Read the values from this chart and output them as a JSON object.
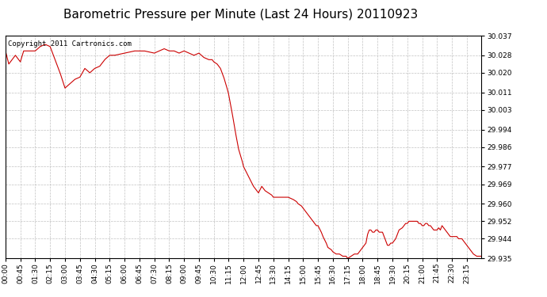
{
  "title": "Barometric Pressure per Minute (Last 24 Hours) 20110923",
  "copyright": "Copyright 2011 Cartronics.com",
  "line_color": "#cc0000",
  "bg_color": "#ffffff",
  "plot_bg_color": "#ffffff",
  "grid_color": "#bbbbbb",
  "yticks": [
    29.935,
    29.944,
    29.952,
    29.96,
    29.969,
    29.977,
    29.986,
    29.994,
    30.003,
    30.011,
    30.02,
    30.028,
    30.037
  ],
  "ylim": [
    29.935,
    30.037
  ],
  "xtick_labels": [
    "00:00",
    "00:45",
    "01:30",
    "02:15",
    "03:00",
    "03:45",
    "04:30",
    "05:15",
    "06:00",
    "06:45",
    "07:30",
    "08:15",
    "09:00",
    "09:45",
    "10:30",
    "11:15",
    "12:00",
    "12:45",
    "13:30",
    "14:15",
    "15:00",
    "15:45",
    "16:30",
    "17:15",
    "18:00",
    "18:45",
    "19:30",
    "20:15",
    "21:00",
    "21:45",
    "22:30",
    "23:15"
  ],
  "title_fontsize": 11,
  "tick_fontsize": 6.5,
  "copyright_fontsize": 6.5,
  "control_points": [
    [
      0,
      30.03
    ],
    [
      10,
      30.024
    ],
    [
      30,
      30.028
    ],
    [
      45,
      30.025
    ],
    [
      55,
      30.03
    ],
    [
      75,
      30.03
    ],
    [
      90,
      30.03
    ],
    [
      105,
      30.032
    ],
    [
      120,
      30.033
    ],
    [
      135,
      30.032
    ],
    [
      150,
      30.026
    ],
    [
      165,
      30.02
    ],
    [
      180,
      30.013
    ],
    [
      195,
      30.015
    ],
    [
      210,
      30.017
    ],
    [
      225,
      30.018
    ],
    [
      240,
      30.022
    ],
    [
      255,
      30.02
    ],
    [
      270,
      30.022
    ],
    [
      285,
      30.023
    ],
    [
      300,
      30.026
    ],
    [
      315,
      30.028
    ],
    [
      330,
      30.028
    ],
    [
      360,
      30.029
    ],
    [
      390,
      30.03
    ],
    [
      420,
      30.03
    ],
    [
      450,
      30.029
    ],
    [
      465,
      30.03
    ],
    [
      480,
      30.031
    ],
    [
      495,
      30.03
    ],
    [
      510,
      30.03
    ],
    [
      525,
      30.029
    ],
    [
      540,
      30.03
    ],
    [
      555,
      30.029
    ],
    [
      570,
      30.028
    ],
    [
      585,
      30.029
    ],
    [
      600,
      30.027
    ],
    [
      615,
      30.026
    ],
    [
      625,
      30.026
    ],
    [
      630,
      30.025
    ],
    [
      640,
      30.024
    ],
    [
      650,
      30.022
    ],
    [
      660,
      30.018
    ],
    [
      670,
      30.013
    ],
    [
      675,
      30.01
    ],
    [
      685,
      30.002
    ],
    [
      695,
      29.993
    ],
    [
      705,
      29.985
    ],
    [
      715,
      29.98
    ],
    [
      720,
      29.977
    ],
    [
      730,
      29.974
    ],
    [
      740,
      29.971
    ],
    [
      750,
      29.968
    ],
    [
      760,
      29.966
    ],
    [
      765,
      29.965
    ],
    [
      775,
      29.968
    ],
    [
      785,
      29.966
    ],
    [
      795,
      29.965
    ],
    [
      805,
      29.964
    ],
    [
      810,
      29.963
    ],
    [
      820,
      29.963
    ],
    [
      825,
      29.963
    ],
    [
      840,
      29.963
    ],
    [
      855,
      29.963
    ],
    [
      870,
      29.962
    ],
    [
      880,
      29.961
    ],
    [
      885,
      29.96
    ],
    [
      895,
      29.959
    ],
    [
      900,
      29.958
    ],
    [
      910,
      29.956
    ],
    [
      920,
      29.954
    ],
    [
      930,
      29.952
    ],
    [
      940,
      29.95
    ],
    [
      945,
      29.95
    ],
    [
      955,
      29.947
    ],
    [
      960,
      29.945
    ],
    [
      970,
      29.942
    ],
    [
      975,
      29.94
    ],
    [
      985,
      29.939
    ],
    [
      990,
      29.938
    ],
    [
      1000,
      29.937
    ],
    [
      1010,
      29.937
    ],
    [
      1020,
      29.936
    ],
    [
      1030,
      29.936
    ],
    [
      1035,
      29.935
    ],
    [
      1045,
      29.936
    ],
    [
      1055,
      29.937
    ],
    [
      1060,
      29.937
    ],
    [
      1065,
      29.937
    ],
    [
      1070,
      29.938
    ],
    [
      1075,
      29.939
    ],
    [
      1080,
      29.94
    ],
    [
      1085,
      29.941
    ],
    [
      1090,
      29.942
    ],
    [
      1095,
      29.946
    ],
    [
      1100,
      29.948
    ],
    [
      1105,
      29.948
    ],
    [
      1110,
      29.947
    ],
    [
      1115,
      29.947
    ],
    [
      1120,
      29.948
    ],
    [
      1125,
      29.948
    ],
    [
      1130,
      29.947
    ],
    [
      1140,
      29.947
    ],
    [
      1150,
      29.943
    ],
    [
      1155,
      29.941
    ],
    [
      1160,
      29.941
    ],
    [
      1165,
      29.942
    ],
    [
      1170,
      29.942
    ],
    [
      1180,
      29.944
    ],
    [
      1190,
      29.948
    ],
    [
      1200,
      29.949
    ],
    [
      1205,
      29.95
    ],
    [
      1210,
      29.951
    ],
    [
      1215,
      29.951
    ],
    [
      1220,
      29.952
    ],
    [
      1225,
      29.952
    ],
    [
      1235,
      29.952
    ],
    [
      1240,
      29.952
    ],
    [
      1245,
      29.952
    ],
    [
      1250,
      29.951
    ],
    [
      1255,
      29.951
    ],
    [
      1260,
      29.95
    ],
    [
      1265,
      29.95
    ],
    [
      1270,
      29.951
    ],
    [
      1275,
      29.951
    ],
    [
      1280,
      29.95
    ],
    [
      1285,
      29.95
    ],
    [
      1290,
      29.949
    ],
    [
      1295,
      29.948
    ],
    [
      1300,
      29.948
    ],
    [
      1305,
      29.948
    ],
    [
      1310,
      29.949
    ],
    [
      1315,
      29.948
    ],
    [
      1320,
      29.95
    ],
    [
      1325,
      29.949
    ],
    [
      1330,
      29.948
    ],
    [
      1335,
      29.947
    ],
    [
      1340,
      29.946
    ],
    [
      1345,
      29.945
    ],
    [
      1350,
      29.945
    ],
    [
      1355,
      29.945
    ],
    [
      1360,
      29.945
    ],
    [
      1365,
      29.945
    ],
    [
      1370,
      29.944
    ],
    [
      1375,
      29.944
    ],
    [
      1380,
      29.944
    ],
    [
      1385,
      29.943
    ],
    [
      1390,
      29.942
    ],
    [
      1395,
      29.941
    ],
    [
      1405,
      29.939
    ],
    [
      1415,
      29.937
    ],
    [
      1425,
      29.936
    ],
    [
      1435,
      29.936
    ],
    [
      1439,
      29.936
    ]
  ]
}
